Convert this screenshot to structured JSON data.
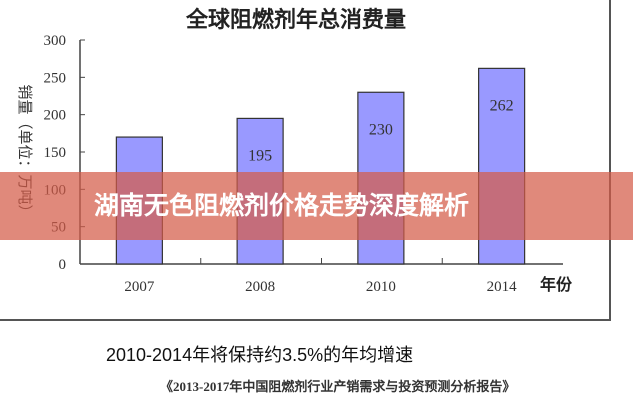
{
  "chart_data": {
    "type": "bar",
    "title": "全球阻燃剂年总消费量",
    "ylabel": "销量（单位：万吨）",
    "xlabel": "年份",
    "categories": [
      "2007",
      "2008",
      "2010",
      "2014"
    ],
    "values": [
      170,
      195,
      230,
      262
    ],
    "data_labels": [
      "",
      "195",
      "230",
      "262"
    ],
    "ylim": [
      0,
      300
    ],
    "yticks": [
      0,
      50,
      100,
      150,
      200,
      250,
      300
    ],
    "grid": false,
    "bar_color": "#9999ff"
  },
  "banner": {
    "text": "湖南无色阻燃剂价格走势深度解析",
    "color": "#d45c48"
  },
  "note": "2010-2014年将保持约3.5%的年均增速",
  "source": "《2013-2017年中国阻燃剂行业产销需求与投资预测分析报告》"
}
